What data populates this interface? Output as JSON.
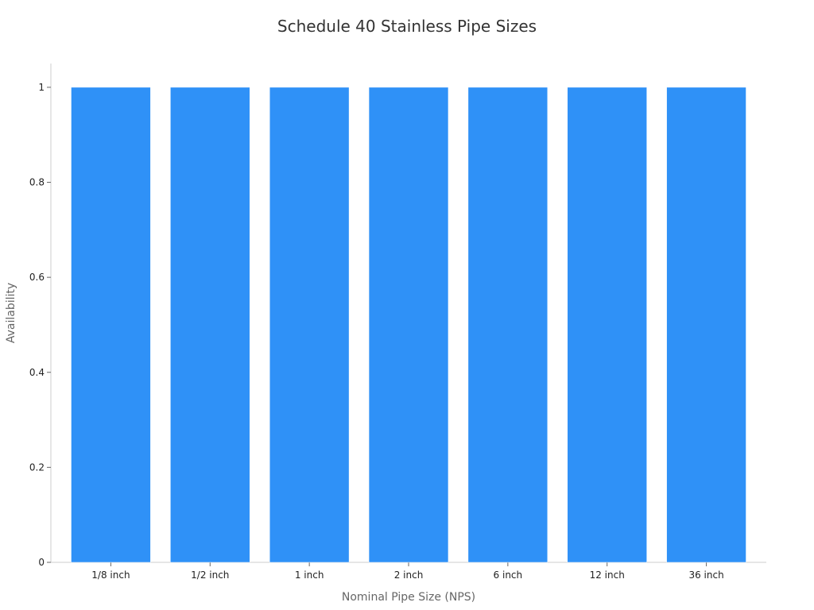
{
  "chart_data": {
    "type": "bar",
    "title": "Schedule 40 Stainless Pipe Sizes",
    "xlabel": "Nominal Pipe Size (NPS)",
    "ylabel": "Availability",
    "categories": [
      "1/8 inch",
      "1/2 inch",
      "1 inch",
      "2 inch",
      "6 inch",
      "12 inch",
      "36 inch"
    ],
    "values": [
      1,
      1,
      1,
      1,
      1,
      1,
      1
    ],
    "ylim": [
      0,
      1.05
    ],
    "yticks": [
      0,
      0.2,
      0.4,
      0.6,
      0.8,
      1
    ],
    "ytick_labels": [
      "0",
      "0.2",
      "0.4",
      "0.6",
      "0.8",
      "1"
    ],
    "bar_color": "#2f91f7",
    "grid": false,
    "legend": "none"
  }
}
